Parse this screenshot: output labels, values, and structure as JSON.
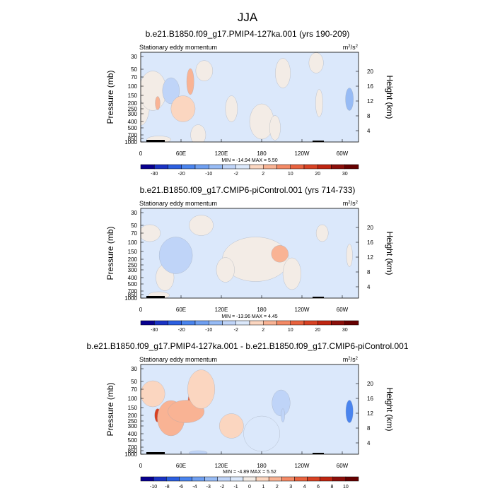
{
  "page_title": "JJA",
  "chart_data": [
    {
      "type": "heatmap",
      "title": "b.e21.B1850.f09_g17.PMIP4-127ka.001 (yrs 190-209)",
      "subtitle": "Stationary eddy momentum",
      "units": "m²/s²",
      "units_base": "m",
      "units_sup": "2",
      "units_mid": "/s",
      "ylabel": "Pressure (mb)",
      "ylabel_right": "Height (km)",
      "x_ticks": [
        "0",
        "60E",
        "120E",
        "180",
        "120W",
        "60W"
      ],
      "y_ticks": [
        "30",
        "50",
        "70",
        "100",
        "150",
        "200",
        "250",
        "300",
        "400",
        "500",
        "700",
        "850",
        "1000"
      ],
      "y_right_ticks": [
        "20",
        "16",
        "12",
        "8",
        "4"
      ],
      "stats": "MIN = -14.94   MAX =   5.50",
      "colorbar_labels": [
        "-30",
        "-20",
        "-10",
        "-2",
        "2",
        "10",
        "20",
        "30"
      ],
      "colorbar_levels": [
        -40,
        -30,
        -25,
        -20,
        -15,
        -10,
        -5,
        -2,
        -1,
        1,
        2,
        5,
        10,
        15,
        20,
        25,
        30
      ],
      "features": [
        {
          "lon": 0,
          "lev": 5,
          "value": 0.6,
          "width_deg": 30,
          "height_levels": 6
        },
        {
          "lon": 20,
          "lev": 3.5,
          "value": 0.9,
          "width_deg": 45,
          "height_levels": 3.5
        },
        {
          "lon": 28,
          "lev": 5,
          "value": 4.0,
          "width_deg": 8,
          "height_levels": 1.8
        },
        {
          "lon": 50,
          "lev": 3.5,
          "value": -4.0,
          "width_deg": 28,
          "height_levels": 1.6
        },
        {
          "lon": 82,
          "lev": 2.5,
          "value": 4.0,
          "width_deg": 12,
          "height_levels": 1.4
        },
        {
          "lon": 70,
          "lev": 6,
          "value": 1.0,
          "width_deg": 40,
          "height_levels": 4
        },
        {
          "lon": 105,
          "lev": 1.2,
          "value": 0.9,
          "width_deg": 28,
          "height_levels": 1.5
        },
        {
          "lon": 95,
          "lev": 10,
          "value": 0.8,
          "width_deg": 25,
          "height_levels": 3
        },
        {
          "lon": 200,
          "lev": 8,
          "value": 0.8,
          "width_deg": 40,
          "height_levels": 5
        },
        {
          "lon": 235,
          "lev": 1.5,
          "value": 0.9,
          "width_deg": 25,
          "height_levels": 1.8
        },
        {
          "lon": 222,
          "lev": 9,
          "value": 0.7,
          "width_deg": 18,
          "height_levels": 3
        },
        {
          "lon": 290,
          "lev": 0.5,
          "value": 0.8,
          "width_deg": 24,
          "height_levels": 1.2
        },
        {
          "lon": 295,
          "lev": 5,
          "value": 0.7,
          "width_deg": 12,
          "height_levels": 3
        },
        {
          "lon": 345,
          "lev": 4.5,
          "value": -9.0,
          "width_deg": 13,
          "height_levels": 2.4
        },
        {
          "lon": 150,
          "lev": 6,
          "value": -0.6,
          "width_deg": 20,
          "height_levels": 3
        },
        {
          "lon": 30,
          "lev": 11.3,
          "value": -0.8,
          "width_deg": 40,
          "height_levels": 0.8
        }
      ]
    },
    {
      "type": "heatmap",
      "title": "b.e21.B1850.f09_g17.CMIP6-piControl.001 (yrs 714-733)",
      "subtitle": "Stationary eddy momentum",
      "units": "m²/s²",
      "units_base": "m",
      "units_sup": "2",
      "units_mid": "/s",
      "ylabel": "Pressure (mb)",
      "ylabel_right": "Height (km)",
      "x_ticks": [
        "0",
        "60E",
        "120E",
        "180",
        "120W",
        "60W"
      ],
      "y_ticks": [
        "30",
        "50",
        "70",
        "100",
        "150",
        "200",
        "250",
        "300",
        "400",
        "500",
        "700",
        "850",
        "1000"
      ],
      "y_right_ticks": [
        "20",
        "16",
        "12",
        "8",
        "4"
      ],
      "stats": "MIN = -13.96   MAX =   4.45",
      "colorbar_labels": [
        "-30",
        "-20",
        "-10",
        "-2",
        "2",
        "10",
        "20",
        "30"
      ],
      "colorbar_levels": [
        -40,
        -30,
        -25,
        -20,
        -15,
        -10,
        -5,
        -2,
        -1,
        1,
        2,
        5,
        10,
        15,
        20,
        25,
        30
      ],
      "features": [
        {
          "lon": 15,
          "lev": 2.0,
          "value": 0.8,
          "width_deg": 35,
          "height_levels": 2
        },
        {
          "lon": 40,
          "lev": 8,
          "value": 0.7,
          "width_deg": 30,
          "height_levels": 4
        },
        {
          "lon": 60,
          "lev": 4.5,
          "value": -8.0,
          "width_deg": 35,
          "height_levels": 2.0
        },
        {
          "lon": 58,
          "lev": 4.5,
          "value": -2.5,
          "width_deg": 55,
          "height_levels": 3.2
        },
        {
          "lon": 100,
          "lev": 1.0,
          "value": 0.8,
          "width_deg": 40,
          "height_levels": 1.5
        },
        {
          "lon": 190,
          "lev": 5,
          "value": 0.9,
          "width_deg": 110,
          "height_levels": 6
        },
        {
          "lon": 230,
          "lev": 4.3,
          "value": 3.0,
          "width_deg": 28,
          "height_levels": 1.3
        },
        {
          "lon": 250,
          "lev": 7.5,
          "value": 0.8,
          "width_deg": 30,
          "height_levels": 4
        },
        {
          "lon": 300,
          "lev": 2.0,
          "value": 0.7,
          "width_deg": 20,
          "height_levels": 2
        },
        {
          "lon": 345,
          "lev": 4.5,
          "value": 0.9,
          "width_deg": 10,
          "height_levels": 1.5
        },
        {
          "lon": 30,
          "lev": 11.2,
          "value": -0.9,
          "width_deg": 35,
          "height_levels": 0.8
        },
        {
          "lon": 140,
          "lev": 7,
          "value": -0.7,
          "width_deg": 30,
          "height_levels": 3
        }
      ]
    },
    {
      "type": "heatmap",
      "title": "b.e21.B1850.f09_g17.PMIP4-127ka.001 - b.e21.B1850.f09_g17.CMIP6-piControl.001",
      "subtitle": "Stationary eddy momentum",
      "units": "m²/s²",
      "units_base": "m",
      "units_sup": "2",
      "units_mid": "/s",
      "ylabel": "Pressure (mb)",
      "ylabel_right": "Height (km)",
      "x_ticks": [
        "0",
        "60E",
        "120E",
        "180",
        "120W",
        "60W"
      ],
      "y_ticks": [
        "30",
        "50",
        "70",
        "100",
        "150",
        "200",
        "250",
        "300",
        "400",
        "500",
        "700",
        "850",
        "1000"
      ],
      "y_right_ticks": [
        "20",
        "16",
        "12",
        "8",
        "4"
      ],
      "stats": "MIN =  -4.89   MAX =   5.52",
      "colorbar_labels": [
        "-10",
        "-8",
        "-6",
        "-4",
        "-3",
        "-2",
        "-1",
        "0",
        "1",
        "2",
        "3",
        "4",
        "6",
        "8",
        "10"
      ],
      "colorbar_levels": [
        -12,
        -10,
        -8,
        -6,
        -4,
        -3,
        -2,
        -1,
        -0.5,
        0,
        0.5,
        1,
        2,
        3,
        4,
        6,
        8,
        10
      ],
      "features": [
        {
          "lon": 20,
          "lev": 2.5,
          "value": 0.6,
          "width_deg": 40,
          "height_levels": 3
        },
        {
          "lon": 28,
          "lev": 5,
          "value": 4.5,
          "width_deg": 10,
          "height_levels": 1.6
        },
        {
          "lon": 50,
          "lev": 5.5,
          "value": 1.2,
          "width_deg": 45,
          "height_levels": 4
        },
        {
          "lon": 85,
          "lev": 3.5,
          "value": 3.5,
          "width_deg": 14,
          "height_levels": 1.2
        },
        {
          "lon": 75,
          "lev": 4.5,
          "value": 1.3,
          "width_deg": 60,
          "height_levels": 2.6
        },
        {
          "lon": 100,
          "lev": 2.0,
          "value": 0.7,
          "width_deg": 45,
          "height_levels": 2.5
        },
        {
          "lon": 150,
          "lev": 7,
          "value": 0.6,
          "width_deg": 40,
          "height_levels": 4
        },
        {
          "lon": 200,
          "lev": 8,
          "value": -0.7,
          "width_deg": 60,
          "height_levels": 5
        },
        {
          "lon": 232,
          "lev": 3.5,
          "value": -1.3,
          "width_deg": 30,
          "height_levels": 2.0
        },
        {
          "lon": 235,
          "lev": 5.0,
          "value": -1.8,
          "width_deg": 6,
          "height_levels": 0.8
        },
        {
          "lon": 345,
          "lev": 4.5,
          "value": -5.0,
          "width_deg": 12,
          "height_levels": 2.0
        },
        {
          "lon": 95,
          "lev": 11.6,
          "value": -1.5,
          "width_deg": 30,
          "height_levels": 0.7
        }
      ]
    }
  ]
}
